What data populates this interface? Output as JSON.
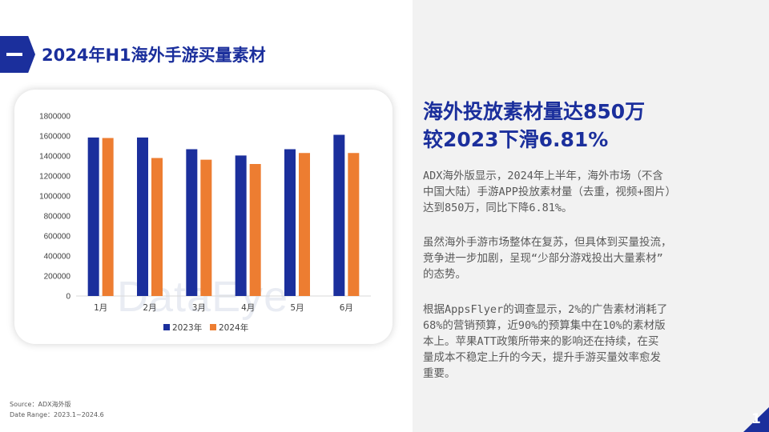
{
  "header": {
    "title": "2024年H1海外手游买量素材"
  },
  "watermark": "DataEye",
  "chart_data": {
    "type": "bar",
    "categories": [
      "1月",
      "2月",
      "3月",
      "4月",
      "5月",
      "6月"
    ],
    "series": [
      {
        "name": "2023年",
        "values": [
          1585000,
          1585000,
          1468000,
          1405000,
          1468000,
          1612000
        ],
        "color": "#1b2f9c"
      },
      {
        "name": "2024年",
        "values": [
          1580000,
          1380000,
          1363000,
          1320000,
          1430000,
          1430000
        ],
        "color": "#ed7d31"
      }
    ],
    "ylim": [
      0,
      1800000
    ],
    "yticks": [
      "0",
      "200000",
      "400000",
      "600000",
      "800000",
      "1000000",
      "1200000",
      "1400000",
      "1600000",
      "1800000"
    ],
    "legend_position": "bottom",
    "grid": false
  },
  "source": {
    "line1": "Source：ADX海外版",
    "line2": "Date Range：2023.1~2024.6"
  },
  "headline": {
    "line1": "海外投放素材量达850万",
    "line2": "较2023下滑6.81%"
  },
  "paragraphs": [
    [
      "ADX海外版显示，2024年上半年，海外市场（不含",
      "中国大陆）手游APP投放素材量（去重，视频+图片）",
      "达到850万，同比下降6.81%。"
    ],
    [
      "虽然海外手游市场整体在复苏，但具体到买量投流，",
      "竞争进一步加剧，呈现“少部分游戏投出大量素材”",
      "的态势。"
    ],
    [
      "根据AppsFlyer的调查显示，2%的广告素材消耗了",
      "68%的营销预算，近90%的预算集中在10%的素材版",
      "本上。苹果ATT政策所带来的影响还在持续，在买",
      "量成本不稳定上升的今天，提升手游买量效率愈发",
      "重要。"
    ]
  ],
  "page_number": "1",
  "colors": {
    "brand": "#1b2f9c",
    "accent": "#ed7d31",
    "panel": "#f2f2f2"
  }
}
